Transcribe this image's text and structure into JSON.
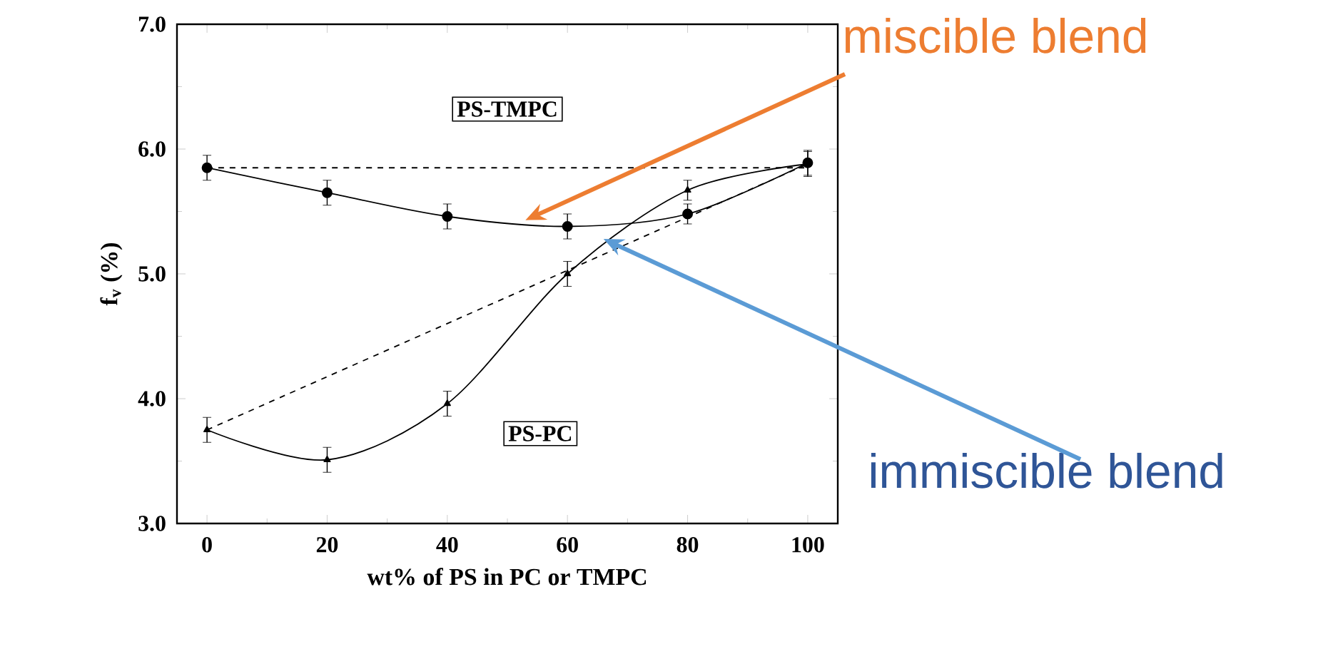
{
  "chart_data": {
    "type": "line",
    "xlabel": "wt% of PS in PC or TMPC",
    "ylabel": "f$_{v}$ (%)",
    "xlim": [
      -5,
      105
    ],
    "ylim": [
      3,
      7
    ],
    "xticks": [
      0,
      20,
      40,
      60,
      80,
      100
    ],
    "yticks": [
      {
        "value": 3,
        "label": "3.0"
      },
      {
        "value": 4,
        "label": "4.0"
      },
      {
        "value": 5,
        "label": "5.0"
      },
      {
        "value": 6,
        "label": "6.0"
      },
      {
        "value": 7,
        "label": "7.0"
      }
    ],
    "series": [
      {
        "color": "#000000",
        "marker": "circle",
        "line_style": "solid",
        "x": [
          0,
          20,
          40,
          60,
          80,
          100
        ],
        "values": [
          5.85,
          5.65,
          5.46,
          5.38,
          5.48,
          5.89
        ],
        "errors": [
          0.1,
          0.1,
          0.1,
          0.1,
          0.08,
          0.1
        ]
      },
      {
        "color": "#000000",
        "marker": "triangle",
        "line_style": "solid",
        "x": [
          0,
          20,
          40,
          60,
          80,
          100
        ],
        "values": [
          3.75,
          3.51,
          3.96,
          5.0,
          5.67,
          5.88
        ],
        "errors": [
          0.1,
          0.1,
          0.1,
          0.1,
          0.08,
          0.1
        ]
      },
      {
        "color": "#000000",
        "marker": "none",
        "line_style": "dashed",
        "x": [
          0,
          100
        ],
        "values": [
          5.85,
          5.85
        ]
      },
      {
        "color": "#000000",
        "marker": "none",
        "line_style": "dashed",
        "x": [
          0,
          100
        ],
        "values": [
          3.75,
          5.88
        ]
      }
    ],
    "annotations": [
      {
        "text": "miscible blend",
        "x": 53,
        "y": 5.43
      },
      {
        "text": "immiscible blend",
        "x": 66,
        "y": 5.28
      },
      "PS-TMPC",
      "PS-PC"
    ],
    "grid": false
  }
}
